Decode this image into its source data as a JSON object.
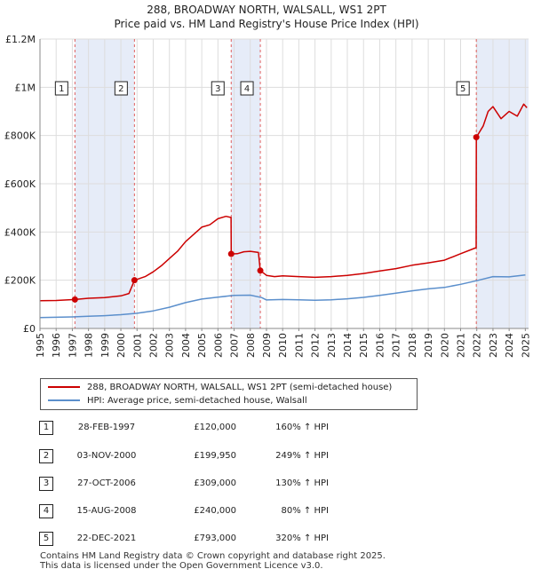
{
  "chart_data": {
    "type": "line",
    "title": "288, BROADWAY NORTH, WALSALL, WS1 2PT",
    "subtitle": "Price paid vs. HM Land Registry's House Price Index (HPI)",
    "xlim": [
      1995,
      2025.2
    ],
    "ylim": [
      0,
      1200000
    ],
    "y_ticks": [
      {
        "value": 0,
        "label": "£0"
      },
      {
        "value": 200000,
        "label": "£200K"
      },
      {
        "value": 400000,
        "label": "£400K"
      },
      {
        "value": 600000,
        "label": "£600K"
      },
      {
        "value": 800000,
        "label": "£800K"
      },
      {
        "value": 1000000,
        "label": "£1M"
      },
      {
        "value": 1200000,
        "label": "£1.2M"
      }
    ],
    "x_ticks": [
      "1995",
      "1996",
      "1997",
      "1998",
      "1999",
      "2000",
      "2001",
      "2002",
      "2003",
      "2004",
      "2005",
      "2006",
      "2007",
      "2008",
      "2009",
      "2010",
      "2011",
      "2012",
      "2013",
      "2014",
      "2015",
      "2016",
      "2017",
      "2018",
      "2019",
      "2020",
      "2021",
      "2022",
      "2023",
      "2024",
      "2025"
    ],
    "grid": true,
    "series": [
      {
        "name": "288, BROADWAY NORTH, WALSALL, WS1 2PT (semi-detached house)",
        "color": "#cc0000",
        "points": [
          [
            1995.0,
            115000
          ],
          [
            1996.0,
            116000
          ],
          [
            1997.16,
            120000
          ],
          [
            1998.0,
            125000
          ],
          [
            1999.0,
            128000
          ],
          [
            2000.0,
            135000
          ],
          [
            2000.5,
            145000
          ],
          [
            2000.84,
            199950
          ],
          [
            2001.5,
            215000
          ],
          [
            2002.0,
            235000
          ],
          [
            2002.5,
            260000
          ],
          [
            2003.0,
            290000
          ],
          [
            2003.5,
            320000
          ],
          [
            2004.0,
            360000
          ],
          [
            2004.5,
            390000
          ],
          [
            2005.0,
            420000
          ],
          [
            2005.5,
            430000
          ],
          [
            2006.0,
            455000
          ],
          [
            2006.5,
            465000
          ],
          [
            2006.81,
            460000
          ],
          [
            2006.82,
            309000
          ],
          [
            2007.2,
            310000
          ],
          [
            2007.6,
            318000
          ],
          [
            2008.0,
            320000
          ],
          [
            2008.5,
            315000
          ],
          [
            2008.62,
            240000
          ],
          [
            2009.0,
            220000
          ],
          [
            2009.5,
            215000
          ],
          [
            2010.0,
            218000
          ],
          [
            2011.0,
            215000
          ],
          [
            2012.0,
            212000
          ],
          [
            2013.0,
            215000
          ],
          [
            2014.0,
            220000
          ],
          [
            2015.0,
            228000
          ],
          [
            2016.0,
            238000
          ],
          [
            2017.0,
            248000
          ],
          [
            2018.0,
            262000
          ],
          [
            2019.0,
            272000
          ],
          [
            2020.0,
            283000
          ],
          [
            2021.0,
            310000
          ],
          [
            2021.96,
            335000
          ],
          [
            2021.97,
            793000
          ],
          [
            2022.4,
            840000
          ],
          [
            2022.7,
            900000
          ],
          [
            2023.0,
            920000
          ],
          [
            2023.5,
            870000
          ],
          [
            2024.0,
            900000
          ],
          [
            2024.5,
            880000
          ],
          [
            2024.9,
            930000
          ],
          [
            2025.1,
            915000
          ]
        ]
      },
      {
        "name": "HPI: Average price, semi-detached house, Walsall",
        "color": "#5b8fcc",
        "points": [
          [
            1995.0,
            45000
          ],
          [
            1996.0,
            46500
          ],
          [
            1997.0,
            48000
          ],
          [
            1998.0,
            50500
          ],
          [
            1999.0,
            53000
          ],
          [
            2000.0,
            57000
          ],
          [
            2001.0,
            63000
          ],
          [
            2002.0,
            73000
          ],
          [
            2003.0,
            88000
          ],
          [
            2004.0,
            107000
          ],
          [
            2005.0,
            122000
          ],
          [
            2006.0,
            130000
          ],
          [
            2007.0,
            137000
          ],
          [
            2008.0,
            138000
          ],
          [
            2008.7,
            128000
          ],
          [
            2009.0,
            118000
          ],
          [
            2010.0,
            120000
          ],
          [
            2011.0,
            119000
          ],
          [
            2012.0,
            117000
          ],
          [
            2013.0,
            119000
          ],
          [
            2014.0,
            123000
          ],
          [
            2015.0,
            129000
          ],
          [
            2016.0,
            137000
          ],
          [
            2017.0,
            146000
          ],
          [
            2018.0,
            156000
          ],
          [
            2019.0,
            164000
          ],
          [
            2020.0,
            170000
          ],
          [
            2021.0,
            183000
          ],
          [
            2022.0,
            198000
          ],
          [
            2023.0,
            215000
          ],
          [
            2024.0,
            214000
          ],
          [
            2025.0,
            222000
          ]
        ]
      }
    ],
    "sales": [
      {
        "id": "1",
        "x": 1997.16,
        "y": 120000,
        "date": "28-FEB-1997",
        "price": "£120,000",
        "hpi": "160% ↑ HPI"
      },
      {
        "id": "2",
        "x": 2000.84,
        "y": 199950,
        "date": "03-NOV-2000",
        "price": "£199,950",
        "hpi": "249% ↑ HPI"
      },
      {
        "id": "3",
        "x": 2006.82,
        "y": 309000,
        "date": "27-OCT-2006",
        "price": "£309,000",
        "hpi": "130% ↑ HPI"
      },
      {
        "id": "4",
        "x": 2008.62,
        "y": 240000,
        "date": "15-AUG-2008",
        "price": "£240,000",
        "hpi": "80% ↑ HPI"
      },
      {
        "id": "5",
        "x": 2021.97,
        "y": 793000,
        "date": "22-DEC-2021",
        "price": "£793,000",
        "hpi": "320% ↑ HPI"
      }
    ],
    "shaded_ranges": [
      [
        1997.16,
        2000.84
      ],
      [
        2006.82,
        2008.62
      ],
      [
        2021.97,
        2025.2
      ]
    ],
    "colors": {
      "band": "#e6ecf8",
      "grid": "#dddddd",
      "marker_line": "#e06060"
    }
  },
  "footer": {
    "line1": "Contains HM Land Registry data © Crown copyright and database right 2025.",
    "line2": "This data is licensed under the Open Government Licence v3.0."
  }
}
